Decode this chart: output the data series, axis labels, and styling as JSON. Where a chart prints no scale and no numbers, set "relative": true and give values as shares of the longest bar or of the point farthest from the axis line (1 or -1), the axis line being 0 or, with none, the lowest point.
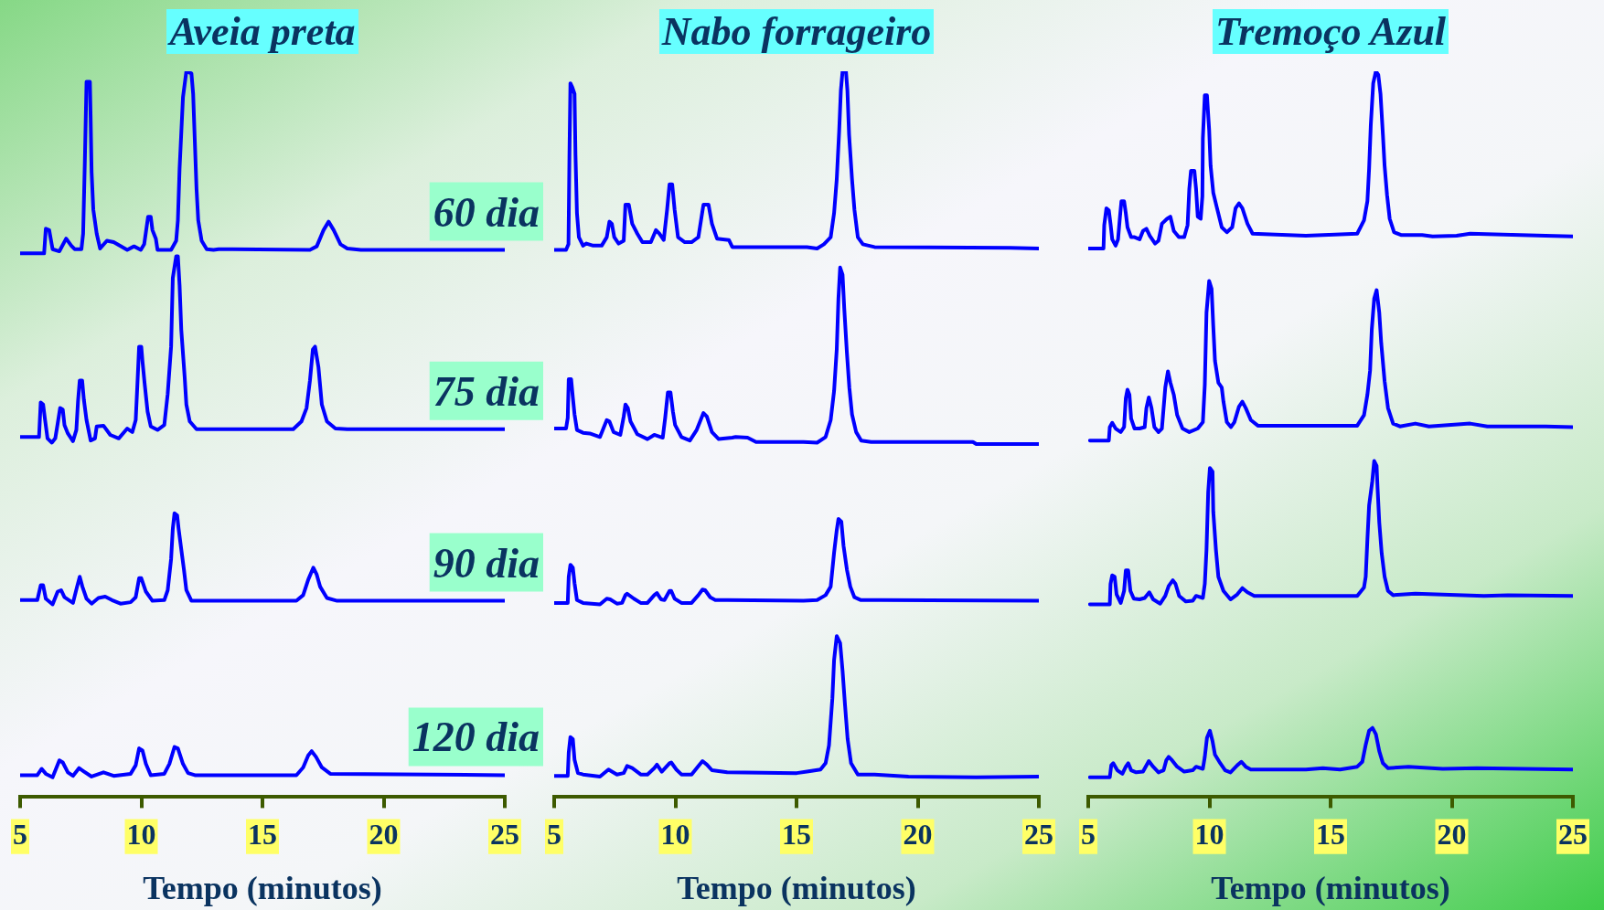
{
  "chart_data": [
    {
      "type": "line",
      "title": "Aveia preta",
      "xlabel": "Tempo (minutos)",
      "xlim": [
        5,
        25
      ],
      "xticks": [
        5,
        10,
        15,
        20,
        25
      ],
      "relative": true,
      "marker": "none",
      "series": [
        {
          "name": "60 dia",
          "color": "#0000ff",
          "x": [
            5,
            5.99,
            6.06,
            6.2,
            6.34,
            6.62,
            6.9,
            7.11,
            7.25,
            7.53,
            7.6,
            7.67,
            7.74,
            7.88,
            7.91,
            7.95,
            8.02,
            8.16,
            8.3,
            8.58,
            8.86,
            9.42,
            9.7,
            9.98,
            10.12,
            10.28,
            10.39,
            10.46,
            10.6,
            10.67,
            11.23,
            11.44,
            11.51,
            11.58,
            11.72,
            11.86,
            12.07,
            12.14,
            12.21,
            12.28,
            12.35,
            12.49,
            12.7,
            12.98,
            13.19,
            16.96,
            17.24,
            17.52,
            17.73,
            17.94,
            18.22,
            18.5,
            19.06,
            25
          ],
          "values": [
            0.742,
            0.742,
            0.777,
            0.775,
            0.748,
            0.745,
            0.763,
            0.753,
            0.748,
            0.748,
            0.77,
            0.871,
            0.985,
            0.985,
            0.934,
            0.857,
            0.804,
            0.77,
            0.749,
            0.76,
            0.758,
            0.747,
            0.752,
            0.747,
            0.755,
            0.794,
            0.794,
            0.775,
            0.763,
            0.747,
            0.747,
            0.76,
            0.789,
            0.862,
            0.963,
            1,
            0.997,
            0.968,
            0.9,
            0.833,
            0.789,
            0.76,
            0.748,
            0.747,
            0.748,
            0.747,
            0.752,
            0.775,
            0.787,
            0.775,
            0.755,
            0.749,
            0.747,
            0.747
          ]
        },
        {
          "name": "75 dia",
          "color": "#0000ff",
          "x": [
            5,
            5.78,
            5.85,
            5.95,
            6.03,
            6.13,
            6.31,
            6.45,
            6.55,
            6.65,
            6.76,
            6.83,
            6.97,
            7.18,
            7.32,
            7.39,
            7.46,
            7.56,
            7.63,
            7.74,
            7.91,
            8.09,
            8.16,
            8.44,
            8.72,
            9.07,
            9.42,
            9.63,
            9.77,
            9.84,
            9.91,
            10.0,
            10.05,
            10.14,
            10.26,
            10.39,
            10.67,
            10.95,
            11.09,
            11.23,
            11.3,
            11.44,
            11.51,
            11.58,
            11.65,
            11.79,
            11.86,
            12.0,
            12.28,
            12.63,
            16.27,
            16.61,
            16.82,
            16.96,
            17.08,
            17.17,
            17.31,
            17.45,
            17.66,
            18.01,
            18.5,
            25
          ],
          "values": [
            0.482,
            0.482,
            0.531,
            0.528,
            0.506,
            0.48,
            0.474,
            0.48,
            0.501,
            0.523,
            0.521,
            0.499,
            0.487,
            0.476,
            0.492,
            0.533,
            0.562,
            0.562,
            0.535,
            0.506,
            0.477,
            0.48,
            0.497,
            0.498,
            0.485,
            0.48,
            0.494,
            0.489,
            0.506,
            0.557,
            0.61,
            0.61,
            0.589,
            0.557,
            0.518,
            0.497,
            0.492,
            0.499,
            0.543,
            0.61,
            0.707,
            0.738,
            0.738,
            0.697,
            0.634,
            0.567,
            0.528,
            0.504,
            0.493,
            0.493,
            0.493,
            0.504,
            0.523,
            0.562,
            0.606,
            0.61,
            0.581,
            0.528,
            0.504,
            0.494,
            0.493,
            0.493
          ]
        },
        {
          "name": "90 dia",
          "color": "#0000ff",
          "x": [
            5,
            5.71,
            5.85,
            5.95,
            6.06,
            6.34,
            6.55,
            6.69,
            6.83,
            7.18,
            7.35,
            7.46,
            7.57,
            7.74,
            7.95,
            8.23,
            8.51,
            8.79,
            9.14,
            9.56,
            9.77,
            9.91,
            10.0,
            10.19,
            10.46,
            10.95,
            11.09,
            11.23,
            11.3,
            11.37,
            11.48,
            11.54,
            11.65,
            11.76,
            11.86,
            12.07,
            16.4,
            16.68,
            16.89,
            17.1,
            17.24,
            17.38,
            17.66,
            18.08,
            25
          ],
          "values": [
            0.251,
            0.251,
            0.272,
            0.272,
            0.253,
            0.245,
            0.263,
            0.265,
            0.255,
            0.247,
            0.27,
            0.284,
            0.27,
            0.253,
            0.246,
            0.254,
            0.256,
            0.251,
            0.246,
            0.248,
            0.255,
            0.282,
            0.282,
            0.263,
            0.25,
            0.251,
            0.265,
            0.309,
            0.352,
            0.374,
            0.371,
            0.352,
            0.323,
            0.294,
            0.265,
            0.25,
            0.25,
            0.258,
            0.28,
            0.297,
            0.287,
            0.27,
            0.254,
            0.25,
            0.25
          ]
        },
        {
          "name": "120 dia",
          "color": "#0000ff",
          "x": [
            5,
            5.71,
            5.89,
            6.06,
            6.34,
            6.62,
            6.76,
            6.97,
            7.18,
            7.43,
            7.6,
            7.95,
            8.44,
            8.86,
            9.56,
            9.77,
            9.91,
            10.05,
            10.19,
            10.39,
            10.95,
            11.16,
            11.37,
            11.51,
            11.72,
            11.93,
            12.21,
            16.4,
            16.68,
            16.89,
            17.03,
            17.21,
            17.45,
            17.8,
            25
          ],
          "values": [
            0.003,
            0.003,
            0.012,
            0.005,
            0,
            0.024,
            0.021,
            0.007,
            0.002,
            0.013,
            0.009,
            0.001,
            0.007,
            0.002,
            0.005,
            0.017,
            0.041,
            0.038,
            0.019,
            0.003,
            0.005,
            0.019,
            0.043,
            0.041,
            0.019,
            0.006,
            0.003,
            0.003,
            0.014,
            0.031,
            0.037,
            0.029,
            0.014,
            0.005,
            0.003
          ]
        }
      ]
    },
    {
      "type": "line",
      "title": "Nabo forrageiro",
      "xlabel": "Tempo (minutos)",
      "xlim": [
        5,
        25
      ],
      "xticks": [
        5,
        10,
        15,
        20,
        25
      ],
      "relative": true,
      "marker": "none",
      "series": [
        {
          "color": "#0000ff",
          "x": [
            5,
            5.49,
            5.59,
            5.63,
            5.67,
            5.74,
            5.84,
            5.88,
            5.94,
            6.02,
            6.19,
            6.33,
            6.61,
            6.96,
            7.17,
            7.28,
            7.38,
            7.48,
            7.66,
            7.87,
            7.94,
            8.08,
            8.22,
            8.43,
            8.64,
            8.99,
            9.2,
            9.34,
            9.52,
            9.66,
            9.76,
            9.87,
            9.97,
            10.11,
            10.39,
            10.67,
            10.95,
            11.16,
            11.37,
            11.51,
            11.72,
            12.21,
            12.35,
            15.43,
            15.85,
            16.13,
            16.41,
            16.55,
            16.66,
            16.76,
            16.83,
            16.9,
            17.04,
            17.1,
            17.17,
            17.29,
            17.39,
            17.53,
            17.74,
            18.22,
            23.82,
            25
          ],
          "values": [
            0.747,
            0.747,
            0.755,
            0.881,
            0.983,
            0.978,
            0.968,
            0.881,
            0.799,
            0.765,
            0.753,
            0.756,
            0.753,
            0.753,
            0.765,
            0.787,
            0.784,
            0.765,
            0.756,
            0.76,
            0.811,
            0.811,
            0.784,
            0.77,
            0.758,
            0.758,
            0.775,
            0.77,
            0.761,
            0.804,
            0.84,
            0.84,
            0.804,
            0.765,
            0.758,
            0.758,
            0.765,
            0.811,
            0.811,
            0.784,
            0.763,
            0.761,
            0.751,
            0.751,
            0.749,
            0.755,
            0.765,
            0.799,
            0.847,
            0.915,
            0.973,
            1,
            1,
            0.973,
            0.91,
            0.847,
            0.804,
            0.765,
            0.755,
            0.751,
            0.75,
            0.749
          ]
        },
        {
          "color": "#0000ff",
          "x": [
            5,
            5.49,
            5.56,
            5.6,
            5.7,
            5.77,
            5.84,
            5.94,
            6.19,
            6.47,
            6.89,
            7.03,
            7.17,
            7.28,
            7.45,
            7.73,
            7.87,
            7.94,
            8.04,
            8.15,
            8.43,
            8.85,
            9.13,
            9.48,
            9.58,
            9.69,
            9.8,
            9.9,
            9.99,
            10.25,
            10.6,
            10.88,
            11.16,
            11.3,
            11.51,
            11.79,
            12.35,
            12.49,
            12.98,
            13.33,
            15.29,
            15.85,
            16.2,
            16.41,
            16.55,
            16.66,
            16.73,
            16.8,
            16.9,
            16.97,
            17.08,
            17.18,
            17.29,
            17.46,
            17.67,
            18.08,
            22.28,
            22.42,
            25
          ],
          "values": [
            0.494,
            0.494,
            0.509,
            0.564,
            0.564,
            0.538,
            0.514,
            0.492,
            0.488,
            0.487,
            0.482,
            0.494,
            0.506,
            0.504,
            0.489,
            0.485,
            0.511,
            0.528,
            0.523,
            0.504,
            0.486,
            0.479,
            0.485,
            0.481,
            0.509,
            0.545,
            0.545,
            0.518,
            0.499,
            0.482,
            0.477,
            0.492,
            0.516,
            0.511,
            0.489,
            0.479,
            0.481,
            0.482,
            0.481,
            0.475,
            0.475,
            0.474,
            0.482,
            0.506,
            0.547,
            0.606,
            0.678,
            0.722,
            0.712,
            0.664,
            0.601,
            0.552,
            0.514,
            0.489,
            0.477,
            0.475,
            0.475,
            0.472,
            0.472
          ]
        },
        {
          "color": "#0000ff",
          "x": [
            5,
            5.56,
            5.6,
            5.67,
            5.77,
            5.84,
            5.94,
            6.19,
            6.89,
            7.17,
            7.31,
            7.59,
            7.8,
            7.94,
            8.01,
            8.29,
            8.57,
            8.85,
            9.13,
            9.24,
            9.41,
            9.55,
            9.76,
            9.83,
            9.97,
            10.25,
            10.67,
            10.95,
            11.12,
            11.23,
            11.44,
            11.65,
            12.14,
            15.29,
            15.85,
            16.2,
            16.41,
            16.55,
            16.66,
            16.73,
            16.85,
            16.94,
            17.08,
            17.22,
            17.39,
            17.66,
            18.5,
            25
          ],
          "values": [
            0.247,
            0.247,
            0.284,
            0.301,
            0.297,
            0.275,
            0.251,
            0.247,
            0.245,
            0.253,
            0.252,
            0.246,
            0.247,
            0.258,
            0.26,
            0.253,
            0.247,
            0.247,
            0.258,
            0.261,
            0.252,
            0.251,
            0.264,
            0.264,
            0.253,
            0.247,
            0.247,
            0.258,
            0.266,
            0.265,
            0.255,
            0.251,
            0.251,
            0.25,
            0.251,
            0.258,
            0.27,
            0.318,
            0.35,
            0.366,
            0.362,
            0.328,
            0.294,
            0.27,
            0.255,
            0.251,
            0.251,
            0.25
          ]
        },
        {
          "color": "#0000ff",
          "x": [
            5,
            5.56,
            5.6,
            5.67,
            5.77,
            5.84,
            5.98,
            6.19,
            6.89,
            7.24,
            7.59,
            7.87,
            8.01,
            8.22,
            8.57,
            8.85,
            9.13,
            9.24,
            9.44,
            9.76,
            9.83,
            10.04,
            10.25,
            10.67,
            10.95,
            11.12,
            11.3,
            11.51,
            12.14,
            15.01,
            15.43,
            15.99,
            16.2,
            16.34,
            16.48,
            16.55,
            16.66,
            16.8,
            16.9,
            17.0,
            17.11,
            17.25,
            17.53,
            18.22,
            19.62,
            22.42,
            25
          ],
          "values": [
            0.002,
            0.002,
            0.035,
            0.057,
            0.054,
            0.025,
            0.006,
            0.004,
            0.001,
            0.011,
            0.004,
            0.006,
            0.016,
            0.013,
            0.004,
            0.004,
            0.013,
            0.018,
            0.008,
            0.02,
            0.021,
            0.011,
            0.004,
            0.004,
            0.016,
            0.023,
            0.018,
            0.01,
            0.007,
            0.006,
            0.008,
            0.011,
            0.02,
            0.045,
            0.112,
            0.166,
            0.2,
            0.19,
            0.151,
            0.103,
            0.054,
            0.02,
            0.004,
            0.004,
            0.001,
            0,
            0.001
          ]
        }
      ]
    },
    {
      "type": "line",
      "title": "Tremoço Azul",
      "xlabel": "Tempo (minutos)",
      "xlim": [
        5,
        25
      ],
      "xticks": [
        5,
        10,
        15,
        20,
        25
      ],
      "relative": true,
      "marker": "none",
      "series": [
        {
          "color": "#0000ff",
          "x": [
            5,
            5.63,
            5.66,
            5.75,
            5.85,
            5.92,
            5.99,
            6.13,
            6.23,
            6.31,
            6.37,
            6.48,
            6.55,
            6.62,
            6.77,
            6.91,
            7.12,
            7.26,
            7.4,
            7.54,
            7.76,
            7.9,
            8.04,
            8.25,
            8.39,
            8.53,
            8.74,
            8.96,
            9.1,
            9.17,
            9.24,
            9.38,
            9.45,
            9.52,
            9.64,
            9.71,
            9.73,
            9.81,
            9.9,
            9.99,
            10.05,
            10.16,
            10.3,
            10.51,
            10.72,
            10.94,
            11.08,
            11.22,
            11.36,
            11.57,
            11.78,
            13.98,
            16.1,
            16.38,
            16.52,
            16.59,
            16.66,
            16.76,
            16.87,
            16.97,
            17.06,
            17.16,
            17.23,
            17.33,
            17.44,
            17.62,
            17.93,
            18.78,
            19.21,
            20.2,
            20.76,
            23.87,
            25
          ],
          "values": [
            0.749,
            0.749,
            0.782,
            0.806,
            0.803,
            0.784,
            0.762,
            0.753,
            0.762,
            0.794,
            0.816,
            0.816,
            0.799,
            0.779,
            0.765,
            0.765,
            0.762,
            0.774,
            0.777,
            0.767,
            0.756,
            0.76,
            0.784,
            0.791,
            0.794,
            0.774,
            0.765,
            0.765,
            0.782,
            0.833,
            0.859,
            0.859,
            0.833,
            0.794,
            0.791,
            0.823,
            0.905,
            0.966,
            0.966,
            0.917,
            0.866,
            0.828,
            0.808,
            0.779,
            0.772,
            0.779,
            0.806,
            0.813,
            0.806,
            0.784,
            0.77,
            0.767,
            0.77,
            0.789,
            0.816,
            0.862,
            0.924,
            0.983,
            1,
            0.995,
            0.968,
            0.91,
            0.866,
            0.825,
            0.791,
            0.772,
            0.768,
            0.768,
            0.766,
            0.767,
            0.77,
            0.767,
            0.766
          ]
        },
        {
          "color": "#0000ff",
          "x": [
            5.07,
            5.85,
            5.89,
            5.99,
            6.13,
            6.34,
            6.48,
            6.55,
            6.62,
            6.7,
            6.77,
            6.91,
            7.12,
            7.33,
            7.4,
            7.5,
            7.61,
            7.73,
            7.9,
            8.04,
            8.18,
            8.29,
            8.39,
            8.53,
            8.67,
            8.89,
            9.17,
            9.52,
            9.73,
            9.81,
            9.88,
            9.99,
            10.09,
            10.16,
            10.23,
            10.37,
            10.51,
            10.58,
            10.72,
            10.89,
            11.03,
            11.22,
            11.36,
            11.5,
            11.71,
            12.0,
            16.1,
            16.38,
            16.52,
            16.63,
            16.7,
            16.8,
            16.9,
            17.01,
            17.09,
            17.23,
            17.37,
            17.58,
            17.86,
            18.5,
            19.06,
            20.76,
            21.47,
            23.87,
            25
          ],
          "values": [
            0.477,
            0.477,
            0.496,
            0.502,
            0.494,
            0.489,
            0.496,
            0.537,
            0.549,
            0.542,
            0.508,
            0.494,
            0.494,
            0.496,
            0.523,
            0.538,
            0.523,
            0.496,
            0.489,
            0.494,
            0.552,
            0.575,
            0.559,
            0.542,
            0.513,
            0.494,
            0.489,
            0.494,
            0.503,
            0.556,
            0.658,
            0.703,
            0.692,
            0.639,
            0.59,
            0.559,
            0.552,
            0.532,
            0.503,
            0.496,
            0.503,
            0.525,
            0.532,
            0.523,
            0.506,
            0.498,
            0.498,
            0.513,
            0.542,
            0.576,
            0.634,
            0.678,
            0.69,
            0.658,
            0.615,
            0.561,
            0.523,
            0.501,
            0.497,
            0.501,
            0.497,
            0.501,
            0.497,
            0.497,
            0.496
          ]
        },
        {
          "color": "#0000ff",
          "x": [
            5.07,
            5.89,
            5.92,
            5.99,
            6.09,
            6.17,
            6.34,
            6.48,
            6.55,
            6.65,
            6.74,
            6.88,
            7.12,
            7.33,
            7.52,
            7.68,
            7.97,
            8.18,
            8.32,
            8.49,
            8.6,
            8.75,
            9.03,
            9.31,
            9.45,
            9.73,
            9.81,
            9.88,
            9.95,
            10.02,
            10.13,
            10.16,
            10.27,
            10.37,
            10.58,
            10.87,
            11.15,
            11.36,
            11.57,
            11.85,
            16.1,
            16.38,
            16.45,
            16.52,
            16.59,
            16.72,
            16.8,
            16.9,
            16.94,
            17.01,
            17.11,
            17.23,
            17.37,
            17.58,
            18.5,
            21.33,
            22.32,
            25
          ],
          "values": [
            0.245,
            0.245,
            0.274,
            0.286,
            0.284,
            0.259,
            0.247,
            0.264,
            0.293,
            0.293,
            0.264,
            0.253,
            0.252,
            0.254,
            0.262,
            0.252,
            0.246,
            0.257,
            0.271,
            0.279,
            0.274,
            0.257,
            0.249,
            0.25,
            0.257,
            0.254,
            0.274,
            0.322,
            0.404,
            0.438,
            0.433,
            0.376,
            0.322,
            0.284,
            0.264,
            0.252,
            0.259,
            0.268,
            0.262,
            0.257,
            0.257,
            0.269,
            0.284,
            0.337,
            0.385,
            0.419,
            0.448,
            0.441,
            0.409,
            0.361,
            0.317,
            0.284,
            0.264,
            0.258,
            0.26,
            0.257,
            0.258,
            0.257
          ]
        },
        {
          "color": "#0000ff",
          "x": [
            5.07,
            5.89,
            5.95,
            6.03,
            6.2,
            6.41,
            6.55,
            6.65,
            6.77,
            6.98,
            7.26,
            7.5,
            7.68,
            7.9,
            8.11,
            8.22,
            8.32,
            8.46,
            8.67,
            8.96,
            9.31,
            9.45,
            9.73,
            9.81,
            9.9,
            10.02,
            10.13,
            10.23,
            10.41,
            10.65,
            10.87,
            11.15,
            11.32,
            11.5,
            11.71,
            13.98,
            14.68,
            15.39,
            16.1,
            16.31,
            16.45,
            16.59,
            16.73,
            16.87,
            17.01,
            17.16,
            17.37,
            18.22,
            19.63,
            21.04,
            25
          ],
          "values": [
            0,
            0,
            0.017,
            0.02,
            0.01,
            0.005,
            0.015,
            0.02,
            0.01,
            0.007,
            0.008,
            0.023,
            0.015,
            0.007,
            0.01,
            0.024,
            0.029,
            0.024,
            0.015,
            0.008,
            0.01,
            0.015,
            0.012,
            0.029,
            0.056,
            0.066,
            0.051,
            0.032,
            0.022,
            0.01,
            0.007,
            0.017,
            0.022,
            0.015,
            0.011,
            0.011,
            0.013,
            0.011,
            0.015,
            0.022,
            0.046,
            0.066,
            0.07,
            0.061,
            0.037,
            0.02,
            0.013,
            0.015,
            0.012,
            0.013,
            0.011
          ]
        }
      ]
    }
  ]
}
